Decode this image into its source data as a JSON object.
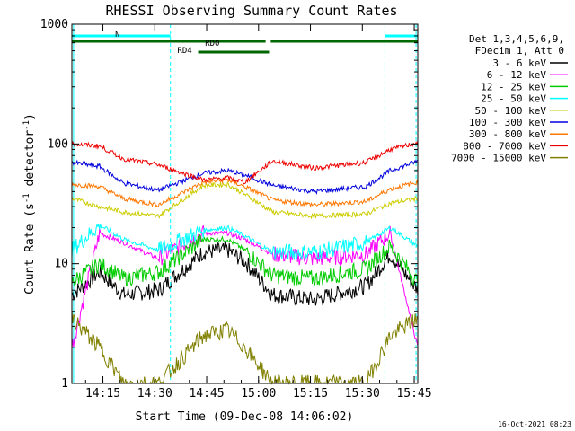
{
  "chart_data": {
    "type": "line",
    "title": "RHESSI Observing Summary Count Rates",
    "xlabel": "Start Time (09-Dec-08 14:06:02)",
    "ylabel_main": "Count Rate (s",
    "ylabel_sup1": "-1",
    "ylabel_mid": " detector",
    "ylabel_sup2": "-1",
    "ylabel_end": ")",
    "yscale": "log",
    "ylim": [
      1,
      1000
    ],
    "xlim_minutes": [
      0,
      100
    ],
    "x_tick_labels": [
      "14:15",
      "14:30",
      "14:45",
      "15:00",
      "15:15",
      "15:30",
      "15:45"
    ],
    "x_tick_minutes": [
      8.97,
      23.97,
      38.97,
      53.97,
      68.97,
      83.97,
      98.97
    ],
    "y_tick_labels": [
      "1",
      "10",
      "100",
      "1000"
    ],
    "y_tick_values": [
      1,
      10,
      100,
      1000
    ],
    "legend_header": [
      "Det 1,3,4,5,6,9,",
      "FDecim 1, Att 0"
    ],
    "legend_placement": "right",
    "attenuator_intervals_minutes": [
      [
        0,
        28.5
      ],
      [
        90.5,
        100
      ]
    ],
    "annotations": {
      "n_label": "N",
      "rd0_label": "RD0",
      "rd4_label": "RD4"
    },
    "timestamp": "16-Oct-2021 08:23",
    "series": [
      {
        "name": "3 - 6 keV",
        "color": "#000000",
        "values_min": [
          0,
          8,
          15,
          25,
          38,
          45,
          50,
          58,
          70,
          85,
          92,
          100
        ],
        "values": [
          5.5,
          8.5,
          5.5,
          6,
          12.5,
          13,
          10.5,
          5.5,
          5,
          6.5,
          12,
          6
        ]
      },
      {
        "name": "6 - 12 keV",
        "color": "#ff00ff",
        "values_min": [
          0,
          8,
          15,
          25,
          38,
          45,
          50,
          58,
          70,
          85,
          92,
          100
        ],
        "values": [
          2,
          18,
          15,
          11,
          18,
          18,
          16,
          12,
          11,
          12,
          18,
          2
        ]
      },
      {
        "name": "12 - 25 keV",
        "color": "#00cc00",
        "values_min": [
          0,
          8,
          15,
          25,
          38,
          45,
          50,
          58,
          70,
          85,
          92,
          100
        ],
        "values": [
          7,
          10,
          7.5,
          8.5,
          16,
          16,
          13,
          8,
          7.5,
          9,
          14,
          7
        ]
      },
      {
        "name": "25 - 50 keV",
        "color": "#00ffff",
        "values_min": [
          0,
          8,
          15,
          25,
          38,
          45,
          50,
          58,
          70,
          85,
          92,
          100
        ],
        "values": [
          13,
          21,
          16,
          13,
          19,
          20,
          17,
          12.5,
          12.5,
          15,
          20,
          14
        ]
      },
      {
        "name": "50 - 100 keV",
        "color": "#cccc00",
        "values_min": [
          0,
          8,
          15,
          25,
          38,
          45,
          50,
          58,
          70,
          85,
          92,
          100
        ],
        "values": [
          35,
          30,
          27,
          25,
          45,
          46,
          38,
          27,
          25,
          26,
          32,
          35
        ]
      },
      {
        "name": "100 - 300 keV",
        "color": "#0000dd",
        "values_min": [
          0,
          8,
          15,
          25,
          38,
          45,
          50,
          58,
          70,
          85,
          92,
          100
        ],
        "values": [
          70,
          65,
          47,
          41,
          57,
          60,
          55,
          45,
          40,
          44,
          60,
          72
        ]
      },
      {
        "name": "300 - 800 keV",
        "color": "#ff7700",
        "values_min": [
          0,
          8,
          15,
          25,
          38,
          45,
          50,
          58,
          70,
          85,
          92,
          100
        ],
        "values": [
          46,
          44,
          35,
          31,
          48,
          50,
          44,
          34,
          31,
          33,
          42,
          48
        ]
      },
      {
        "name": "800 - 7000 keV",
        "color": "#ee0000",
        "values_min": [
          0,
          8,
          15,
          25,
          38,
          45,
          50,
          58,
          70,
          85,
          92,
          100
        ],
        "values": [
          100,
          96,
          75,
          67,
          50,
          52,
          48,
          72,
          63,
          70,
          90,
          102
        ]
      },
      {
        "name": "7000 - 15000 keV",
        "color": "#808000",
        "values_min": [
          0,
          8,
          15,
          25,
          38,
          45,
          50,
          58,
          70,
          85,
          92,
          100
        ],
        "values": [
          3.5,
          2,
          1,
          1,
          2.5,
          2.8,
          2,
          1,
          1,
          1,
          2.5,
          3.5
        ]
      }
    ]
  }
}
